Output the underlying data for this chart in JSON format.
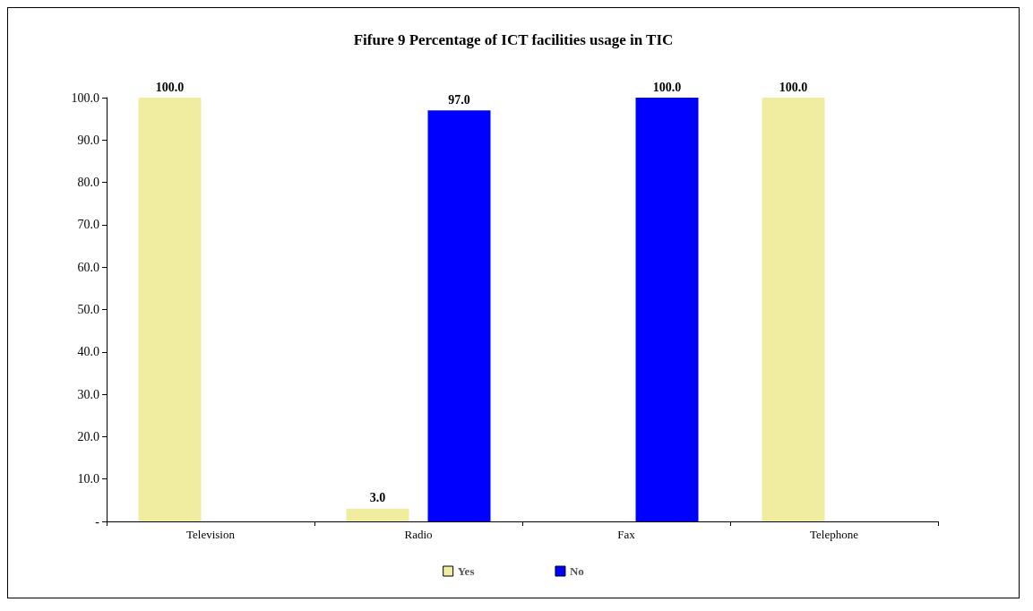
{
  "chart_data": {
    "type": "bar",
    "title": "Fifure 9 Percentage of ICT facilities usage in TIC",
    "categories": [
      "Television",
      "Radio",
      "Fax",
      "Telephone"
    ],
    "series": [
      {
        "name": "Yes",
        "color": "#f0eca0",
        "values": [
          100,
          3,
          0,
          100
        ],
        "value_labels": [
          "100.0",
          "3.0",
          null,
          "100.0"
        ]
      },
      {
        "name": "No",
        "color": "#0000ff",
        "values": [
          0,
          97,
          100,
          0
        ],
        "value_labels": [
          null,
          "97.0",
          "100.0",
          null
        ]
      }
    ],
    "ylim": [
      0,
      100
    ],
    "yticks": [
      {
        "value": 0,
        "label": "-"
      },
      {
        "value": 10,
        "label": "10.0"
      },
      {
        "value": 20,
        "label": "20.0"
      },
      {
        "value": 30,
        "label": "30.0"
      },
      {
        "value": 40,
        "label": "40.0"
      },
      {
        "value": 50,
        "label": "50.0"
      },
      {
        "value": 60,
        "label": "60.0"
      },
      {
        "value": 70,
        "label": "70.0"
      },
      {
        "value": 80,
        "label": "80.0"
      },
      {
        "value": 90,
        "label": "90.0"
      },
      {
        "value": 100,
        "label": "100.0"
      }
    ],
    "grid": false,
    "legend": "bottom"
  }
}
